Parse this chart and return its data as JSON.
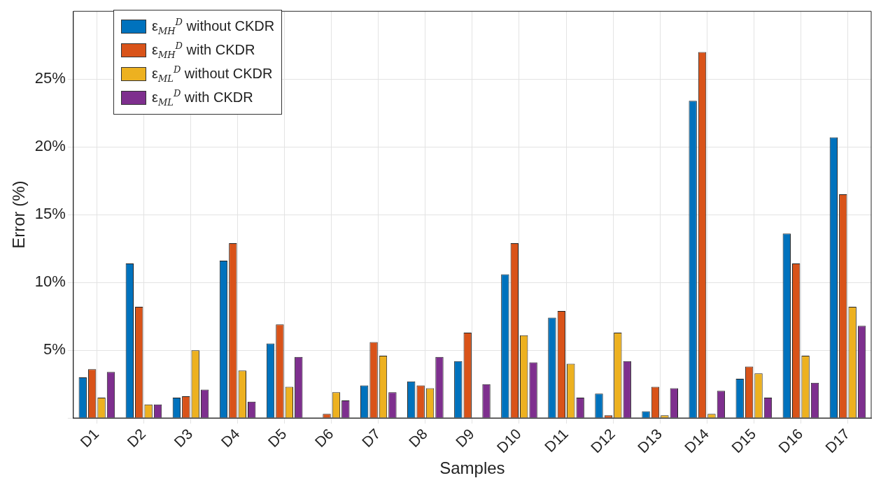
{
  "chart_data": {
    "type": "bar",
    "xlabel": "Samples",
    "ylabel": "Error (%)",
    "categories": [
      "D1",
      "D2",
      "D3",
      "D4",
      "D5",
      "D6",
      "D7",
      "D8",
      "D9",
      "D10",
      "D11",
      "D12",
      "D13",
      "D14",
      "D15",
      "D16",
      "D17"
    ],
    "series": [
      {
        "name": "ε$_{MH}$$^{D}$ without CKDR",
        "color": "#0072bd",
        "values": [
          3.0,
          11.4,
          1.5,
          11.6,
          5.5,
          0,
          2.4,
          2.7,
          4.2,
          10.6,
          7.4,
          1.8,
          0.5,
          23.4,
          2.9,
          13.6,
          20.7
        ]
      },
      {
        "name": "ε$_{MH}$$^{D}$ with CKDR",
        "color": "#d95319",
        "values": [
          3.6,
          8.2,
          1.6,
          12.9,
          6.9,
          0.3,
          5.6,
          2.4,
          6.3,
          12.9,
          7.9,
          0.2,
          2.3,
          27.0,
          3.8,
          11.4,
          16.5
        ]
      },
      {
        "name": "ε$_{ML}$$^{D}$ without CKDR",
        "color": "#edb120",
        "values": [
          1.5,
          1.0,
          5.0,
          3.5,
          2.3,
          1.9,
          4.6,
          2.2,
          0,
          6.1,
          4.0,
          6.3,
          0.2,
          0.3,
          3.3,
          4.6,
          8.2
        ]
      },
      {
        "name": "ε$_{ML}$$^{D}$ with CKDR",
        "color": "#7e2f8e",
        "values": [
          3.4,
          1.0,
          2.1,
          1.2,
          4.5,
          1.3,
          1.9,
          4.5,
          2.5,
          4.1,
          1.5,
          4.2,
          2.2,
          2.0,
          1.5,
          2.6,
          6.8
        ]
      }
    ],
    "ylim": [
      0,
      30
    ],
    "yticks": [
      {
        "value": 0,
        "label": null
      },
      {
        "value": 5,
        "label": "5%"
      },
      {
        "value": 10,
        "label": "10%"
      },
      {
        "value": 15,
        "label": "15%"
      },
      {
        "value": 20,
        "label": "20%"
      },
      {
        "value": 25,
        "label": "25%"
      }
    ],
    "grid": true,
    "legend": "top left"
  }
}
